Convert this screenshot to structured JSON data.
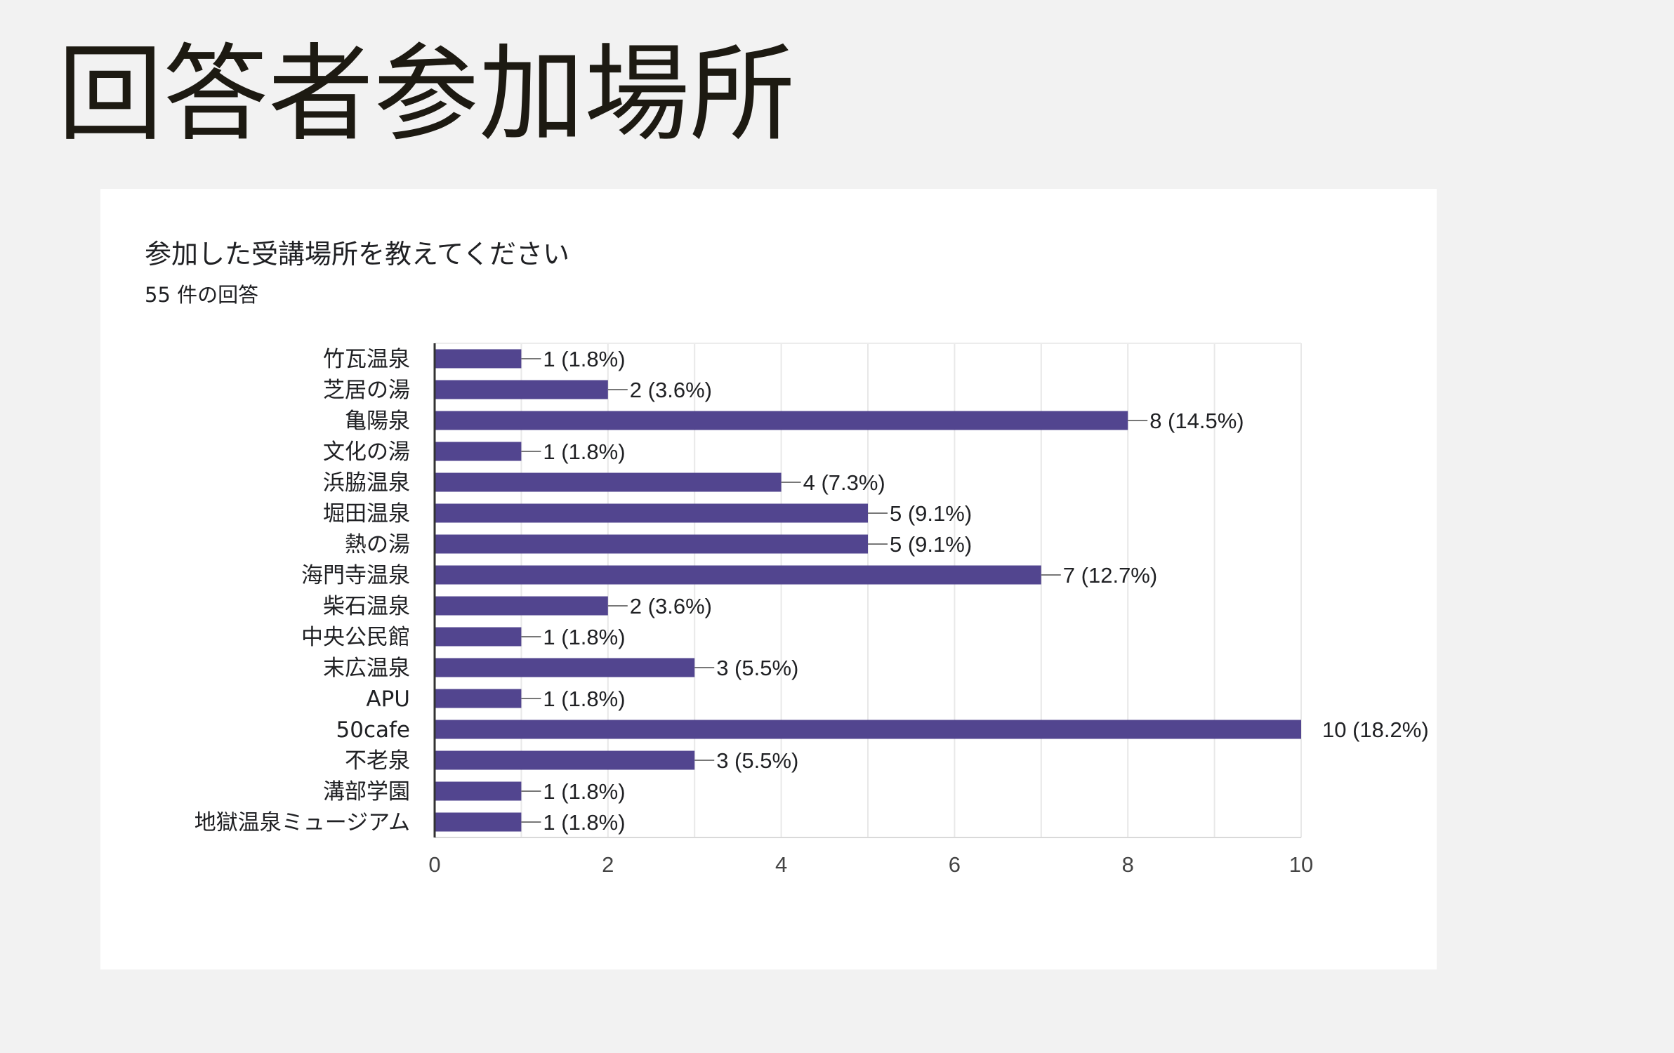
{
  "slide": {
    "title": "回答者参加場所"
  },
  "card": {
    "question": "参加した受講場所を教えてください",
    "response_count": "55 件の回答"
  },
  "chart_data": {
    "type": "bar",
    "orientation": "horizontal",
    "categories": [
      "竹瓦温泉",
      "芝居の湯",
      "亀陽泉",
      "文化の湯",
      "浜脇温泉",
      "堀田温泉",
      "熱の湯",
      "海門寺温泉",
      "柴石温泉",
      "中央公民館",
      "末広温泉",
      "APU",
      "50cafe",
      "不老泉",
      "溝部学園",
      "地獄温泉ミュージアム"
    ],
    "values": [
      1,
      2,
      8,
      1,
      4,
      5,
      5,
      7,
      2,
      1,
      3,
      1,
      10,
      3,
      1,
      1
    ],
    "data_labels": [
      "1 (1.8%)",
      "2 (3.6%)",
      "8 (14.5%)",
      "1 (1.8%)",
      "4 (7.3%)",
      "5 (9.1%)",
      "5 (9.1%)",
      "7 (12.7%)",
      "2 (3.6%)",
      "1 (1.8%)",
      "3 (5.5%)",
      "1 (1.8%)",
      "10 (18.2%)",
      "3 (5.5%)",
      "1 (1.8%)",
      "1 (1.8%)"
    ],
    "x_ticks": [
      "0",
      "2",
      "4",
      "6",
      "8",
      "10"
    ],
    "xlim": [
      0,
      10
    ],
    "grid": true,
    "bar_color": "#52458f"
  }
}
